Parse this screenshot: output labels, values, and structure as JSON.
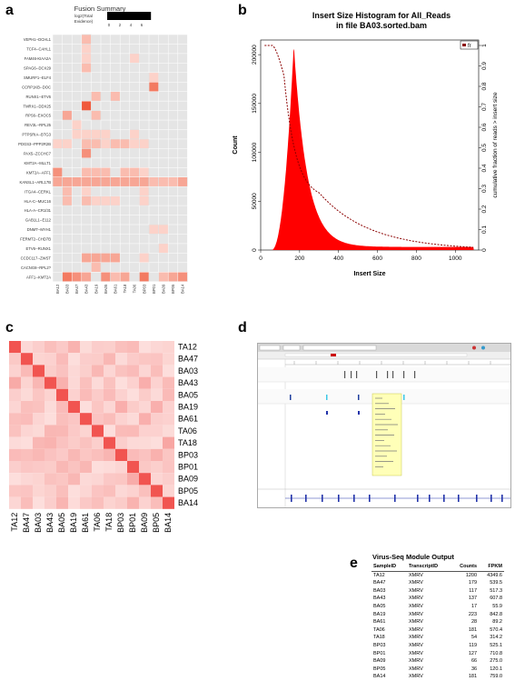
{
  "panels": {
    "a": {
      "label": "a",
      "title": "Fusion Summary",
      "legend_title": "log2(Total\nEvidence)",
      "legend_ticks": [
        "0",
        "2",
        "4",
        "6"
      ]
    },
    "b": {
      "label": "b"
    },
    "c": {
      "label": "c"
    },
    "d": {
      "label": "d"
    },
    "e": {
      "label": "e"
    }
  },
  "colors": {
    "heat_bg": "#e5e5e5",
    "heat_hi": "#f05a3c",
    "hist": "#ff0000",
    "curve": "#8b0000"
  },
  "chart_data": [
    {
      "id": "a",
      "type": "heatmap",
      "title": "Fusion Summary",
      "rows": [
        "VEPH1--DCHL1",
        "TCF4--CAHL1",
        "FAM46-KIAA2A",
        "SPAG6--DCX29",
        "SMURF1--ELF4",
        "CCRP1KB--DOC",
        "RUNX1--ETV6",
        "TMRX1--DDX25",
        "RPS6--EXOC5",
        "REV3L--RPL25",
        "PTPSRIA--BTG3",
        "PDGS3--PPP2R2B",
        "PAX5--ZCCHC7",
        "KMT2A--MLLT1",
        "KMT2A--AFF1",
        "KANSL1--ARL17B",
        "ITGA4--CERKL",
        "HLA-C--MUC16",
        "HLA-A--CR1/31",
        "GAB1L1--E112",
        "DNMT--MYH1",
        "FERMT2--CHD7B",
        "ETV6--RUNX1",
        "CCDC117--ZWST",
        "CACNG8--RPL2?",
        "AFF1--KMT2A"
      ],
      "cols": [
        "BA12",
        "BA03",
        "BA47",
        "BA43",
        "BA19",
        "BA05",
        "BA61",
        "TA18",
        "TA06",
        "BP03",
        "BP01",
        "BA09",
        "BP05",
        "BA14"
      ],
      "cells": [
        [
          0,
          3,
          2
        ],
        [
          1,
          3,
          1
        ],
        [
          2,
          3,
          1
        ],
        [
          2,
          8,
          1
        ],
        [
          3,
          3,
          2
        ],
        [
          4,
          10,
          1
        ],
        [
          5,
          10,
          5
        ],
        [
          6,
          4,
          2
        ],
        [
          6,
          6,
          2
        ],
        [
          7,
          3,
          7
        ],
        [
          8,
          1,
          3
        ],
        [
          8,
          4,
          2
        ],
        [
          9,
          2,
          1
        ],
        [
          10,
          2,
          1
        ],
        [
          10,
          3,
          1
        ],
        [
          10,
          4,
          1
        ],
        [
          10,
          5,
          1
        ],
        [
          10,
          8,
          1
        ],
        [
          11,
          0,
          1
        ],
        [
          11,
          1,
          1
        ],
        [
          11,
          3,
          2
        ],
        [
          11,
          4,
          2
        ],
        [
          11,
          5,
          1
        ],
        [
          11,
          6,
          2
        ],
        [
          11,
          7,
          2
        ],
        [
          11,
          8,
          1
        ],
        [
          11,
          9,
          1
        ],
        [
          12,
          3,
          4
        ],
        [
          14,
          0,
          4
        ],
        [
          14,
          3,
          2
        ],
        [
          14,
          4,
          2
        ],
        [
          14,
          5,
          2
        ],
        [
          14,
          7,
          2
        ],
        [
          14,
          8,
          2
        ],
        [
          14,
          9,
          1
        ],
        [
          15,
          0,
          3
        ],
        [
          15,
          1,
          3
        ],
        [
          15,
          2,
          3
        ],
        [
          15,
          3,
          3
        ],
        [
          15,
          4,
          3
        ],
        [
          15,
          5,
          3
        ],
        [
          15,
          6,
          3
        ],
        [
          15,
          7,
          3
        ],
        [
          15,
          8,
          3
        ],
        [
          15,
          9,
          3
        ],
        [
          15,
          10,
          2
        ],
        [
          15,
          11,
          2
        ],
        [
          15,
          12,
          2
        ],
        [
          15,
          13,
          3
        ],
        [
          16,
          1,
          2
        ],
        [
          16,
          3,
          1
        ],
        [
          16,
          9,
          1
        ],
        [
          17,
          1,
          2
        ],
        [
          17,
          3,
          2
        ],
        [
          17,
          4,
          1
        ],
        [
          17,
          5,
          1
        ],
        [
          17,
          6,
          1
        ],
        [
          17,
          9,
          1
        ],
        [
          20,
          10,
          1
        ],
        [
          20,
          11,
          1
        ],
        [
          22,
          11,
          1
        ],
        [
          23,
          3,
          3
        ],
        [
          23,
          4,
          3
        ],
        [
          23,
          5,
          3
        ],
        [
          23,
          6,
          3
        ],
        [
          23,
          9,
          1
        ],
        [
          24,
          4,
          2
        ],
        [
          25,
          1,
          5
        ],
        [
          25,
          2,
          4
        ],
        [
          25,
          3,
          3
        ],
        [
          25,
          5,
          4
        ],
        [
          25,
          6,
          2
        ],
        [
          25,
          7,
          3
        ],
        [
          25,
          9,
          5
        ],
        [
          25,
          11,
          2
        ],
        [
          25,
          12,
          3
        ],
        [
          25,
          13,
          4
        ]
      ]
    },
    {
      "id": "b",
      "type": "area",
      "title": "Insert Size Histogram for All_Reads\nin file BA03.sorted.bam",
      "xlabel": "Insert Size",
      "ylabel": "Count",
      "y2label": "cumulative fraction of reads > insert size",
      "legend": "fr",
      "xlim": [
        0,
        1120
      ],
      "ylim": [
        0,
        215000
      ],
      "xticks": [
        "0",
        "200",
        "400",
        "600",
        "800",
        "1000"
      ],
      "yticks": [
        "0",
        "50000",
        "100000",
        "150000",
        "200000"
      ],
      "y2ticks": [
        "0",
        "0.1",
        "0.2",
        "0.3",
        "0.4",
        "0.5",
        "0.6",
        "0.7",
        "0.8",
        "0.9",
        "1"
      ],
      "peak_x": 170,
      "peak_y": 210000
    },
    {
      "id": "c",
      "type": "heatmap",
      "samples": [
        "TA12",
        "BA47",
        "BA03",
        "BA43",
        "BA05",
        "BA19",
        "BA61",
        "TA06",
        "TA18",
        "BP03",
        "BP01",
        "BA09",
        "BP05",
        "BA14"
      ]
    },
    {
      "id": "e",
      "type": "table",
      "title": "Virus-Seq Module Output",
      "columns": [
        "SampleID",
        "TranscriptID",
        "Counts",
        "FPKM"
      ],
      "rows": [
        [
          "TA12",
          "XMRV",
          "1200",
          "4349.6"
        ],
        [
          "BA47",
          "XMRV",
          "179",
          "539.5"
        ],
        [
          "BA03",
          "XMRV",
          "117",
          "517.3"
        ],
        [
          "BA43",
          "XMRV",
          "137",
          "607.8"
        ],
        [
          "BA05",
          "XMRV",
          "17",
          "55.9"
        ],
        [
          "BA19",
          "XMRV",
          "223",
          "842.8"
        ],
        [
          "BA61",
          "XMRV",
          "28",
          "89.2"
        ],
        [
          "TA06",
          "XMRV",
          "181",
          "570.4"
        ],
        [
          "TA18",
          "XMRV",
          "54",
          "314.2"
        ],
        [
          "BP03",
          "XMRV",
          "119",
          "525.1"
        ],
        [
          "BP01",
          "XMRV",
          "127",
          "710.8"
        ],
        [
          "BA09",
          "XMRV",
          "66",
          "275.0"
        ],
        [
          "BP05",
          "XMRV",
          "36",
          "120.1"
        ],
        [
          "BA14",
          "XMRV",
          "181",
          "759.0"
        ]
      ]
    }
  ]
}
